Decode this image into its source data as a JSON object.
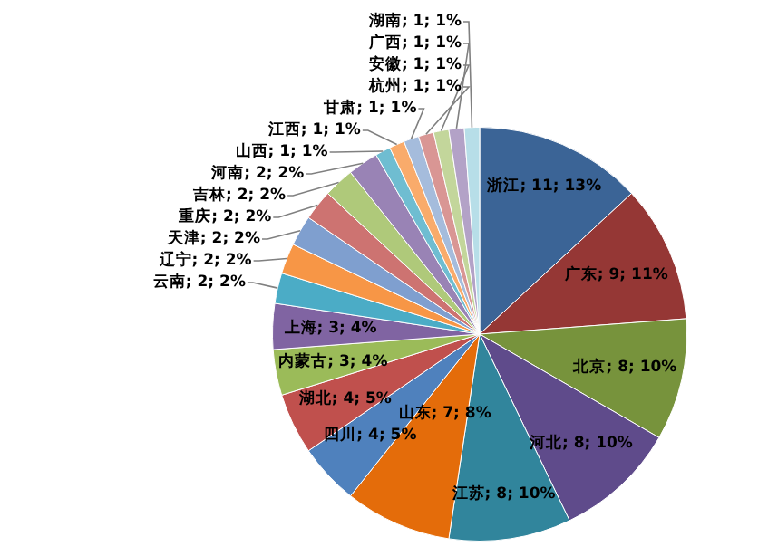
{
  "chart_data": {
    "type": "pie",
    "legend": false,
    "categories": [
      "浙江",
      "广东",
      "北京",
      "河北",
      "江苏",
      "山东",
      "四川",
      "湖北",
      "内蒙古",
      "上海",
      "云南",
      "辽宁",
      "天津",
      "重庆",
      "吉林",
      "河南",
      "山西",
      "江西",
      "甘肃",
      "杭州",
      "安徽",
      "广西",
      "湖南"
    ],
    "values": [
      11,
      9,
      8,
      8,
      8,
      7,
      4,
      4,
      3,
      3,
      2,
      2,
      2,
      2,
      2,
      2,
      1,
      1,
      1,
      1,
      1,
      1,
      1
    ],
    "value_labels": [
      "; 11; 13%",
      "; 9; 11%",
      "; 8; 10%",
      "; 8; 10%",
      "; 8; 10%",
      "; 7; 8%",
      "; 4; 5%",
      "; 4; 5%",
      "; 3; 4%",
      "; 3; 4%",
      "; 2; 2%",
      "; 2; 2%",
      "; 2; 2%",
      "; 2; 2%",
      "; 2; 2%",
      "; 2; 2%",
      "; 1; 1%",
      "; 1; 1%",
      "; 1; 1%",
      "; 1; 1%",
      "; 1; 1%",
      "; 1; 1%",
      "; 1; 1%"
    ],
    "colors": [
      "#3b6496",
      "#953735",
      "#77933c",
      "#5f4b8b",
      "#31859c",
      "#e46c0a",
      "#4f81bd",
      "#c0504d",
      "#9bbb59",
      "#8064a2",
      "#4bacc6",
      "#f79646",
      "#7f9fcf",
      "#cd7371",
      "#afc97a",
      "#9983b5",
      "#6fbdd1",
      "#f9ab6b",
      "#a5bcdc",
      "#d99694",
      "#c3d69b",
      "#b3a2c7",
      "#b7dee8"
    ]
  }
}
